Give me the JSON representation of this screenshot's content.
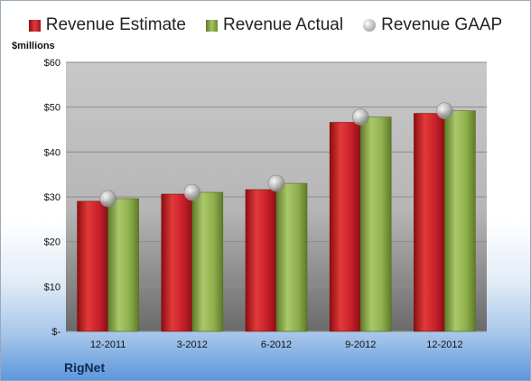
{
  "legend": {
    "estimate": "Revenue Estimate",
    "actual": "Revenue Actual",
    "gaap": "Revenue GAAP"
  },
  "y_unit_label": "$millions",
  "company": "RigNet",
  "colors": {
    "estimate": "#c8202a",
    "actual": "#8fb04e",
    "gaap": "#c0c0c0"
  },
  "chart_data": {
    "type": "bar",
    "categories": [
      "12-2011",
      "3-2012",
      "6-2012",
      "9-2012",
      "12-2012"
    ],
    "series": [
      {
        "name": "Revenue Estimate",
        "values": [
          29.0,
          30.6,
          31.6,
          46.6,
          48.6
        ]
      },
      {
        "name": "Revenue Actual",
        "values": [
          29.6,
          31.0,
          33.0,
          47.8,
          49.2
        ]
      },
      {
        "name": "Revenue GAAP",
        "values": [
          29.6,
          31.0,
          33.0,
          47.8,
          49.2
        ]
      }
    ],
    "ylim": [
      0,
      60
    ],
    "yticks": [
      "$-",
      "$10",
      "$20",
      "$30",
      "$40",
      "$50",
      "$60"
    ],
    "grid": true
  }
}
